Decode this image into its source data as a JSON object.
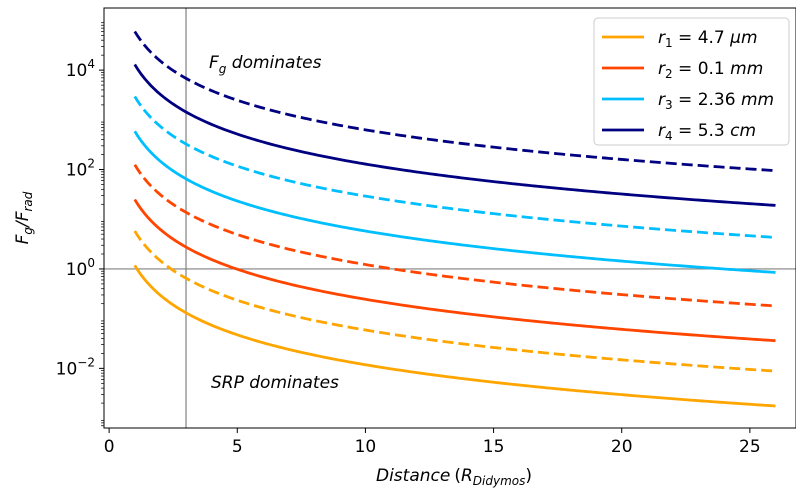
{
  "chart_data": {
    "type": "line",
    "xlabel_main": "Distance",
    "xlabel_sym": "R",
    "xlabel_sub": "Didymos",
    "ylabel_main": "F",
    "ylabel_sub1": "g",
    "ylabel_sep": "/F",
    "ylabel_sub2": "rad",
    "y_scale": "log",
    "xlim": [
      -0.2,
      26.8
    ],
    "ylim_log10": [
      -3.2,
      5.25
    ],
    "x_ticks": [
      0,
      5,
      10,
      15,
      20,
      25
    ],
    "x_tick_labels": [
      "0",
      "5",
      "10",
      "15",
      "20",
      "25"
    ],
    "y_ticks_log10": [
      -2,
      0,
      2,
      4
    ],
    "y_tick_base": "10",
    "y_tick_exponents": [
      "−2",
      "0",
      "2",
      "4"
    ],
    "grid": false,
    "reference_lines": {
      "vertical_x": 3.0,
      "horizontal_y": 1.0
    },
    "legend_position": "upper right",
    "x_range": [
      1.0,
      26.0
    ],
    "line_styles": {
      "solid": "solid",
      "dashed": "dashed"
    },
    "series": [
      {
        "name": "r1 = 4.7 µm",
        "color": "#FFA500",
        "style": "solid",
        "y_at_x1": 1.18,
        "y_at_x26": 0.00175
      },
      {
        "name": "r1 = 4.7 µm",
        "color": "#FFA500",
        "style": "dashed",
        "y_at_x1": 5.8,
        "y_at_x26": 0.0088
      },
      {
        "name": "r2 = 0.1 mm",
        "color": "#FF4500",
        "style": "solid",
        "y_at_x1": 25.0,
        "y_at_x26": 0.036
      },
      {
        "name": "r2 = 0.1 mm",
        "color": "#FF4500",
        "style": "dashed",
        "y_at_x1": 125.0,
        "y_at_x26": 0.18
      },
      {
        "name": "r3 = 2.36 mm",
        "color": "#00BFFF",
        "style": "solid",
        "y_at_x1": 590.0,
        "y_at_x26": 0.85
      },
      {
        "name": "r3 = 2.36 mm",
        "color": "#00BFFF",
        "style": "dashed",
        "y_at_x1": 2950.0,
        "y_at_x26": 4.3
      },
      {
        "name": "r4 = 5.3 cm",
        "color": "#000080",
        "style": "solid",
        "y_at_x1": 13000.0,
        "y_at_x26": 19.0
      },
      {
        "name": "r4 = 5.3 cm",
        "color": "#000080",
        "style": "dashed",
        "y_at_x1": 60000.0,
        "y_at_x26": 95.0
      }
    ],
    "legend": [
      {
        "r": "r",
        "sub": "1",
        "eq": " = 4.7 ",
        "unit": "µm",
        "color": "#FFA500"
      },
      {
        "r": "r",
        "sub": "2",
        "eq": " = 0.1 ",
        "unit": "mm",
        "color": "#FF4500"
      },
      {
        "r": "r",
        "sub": "3",
        "eq": " = 2.36 ",
        "unit": "mm",
        "color": "#00BFFF"
      },
      {
        "r": "r",
        "sub": "4",
        "eq": " = 5.3 ",
        "unit": "cm",
        "color": "#000080"
      }
    ],
    "annotations": {
      "top_main": "F",
      "top_sub": "g",
      "top_rest": " dominates",
      "bottom": "SRP dominates"
    }
  }
}
